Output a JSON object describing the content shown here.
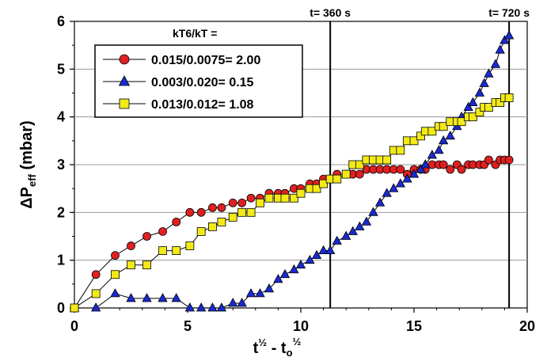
{
  "chart_data": {
    "type": "line",
    "xlim": [
      0,
      20
    ],
    "ylim": [
      0,
      6
    ],
    "grid": "horizontal",
    "xticks": [
      "0",
      "5",
      "10",
      "15",
      "20"
    ],
    "yticks": [
      "0",
      "1",
      "2",
      "3",
      "4",
      "5",
      "6"
    ],
    "xlabel": {
      "main": "t",
      "sup1": "½",
      "mid": " - t",
      "sub": "o",
      "sup2": "½"
    },
    "ylabel": {
      "main": "ΔP",
      "sub": "eff",
      "rest": " (mbar)"
    },
    "legend_title": "kT6/kT =",
    "legend_placement": "top-left",
    "annotations": [
      {
        "text": "t= 360 s",
        "x": 11.3
      },
      {
        "text": "t= 720 s",
        "x": 19.2
      }
    ],
    "vlines": [
      11.3,
      19.2
    ],
    "series": [
      {
        "name": "0.015/0.0075= 2.00",
        "marker": "circle",
        "color": "#e02020",
        "x": [
          0,
          0.95,
          1.8,
          2.5,
          3.2,
          3.9,
          4.5,
          5.1,
          5.6,
          6.1,
          6.5,
          7.0,
          7.4,
          7.8,
          8.2,
          8.6,
          9.0,
          9.3,
          9.7,
          10.0,
          10.4,
          10.7,
          11.0,
          11.3,
          11.6,
          12.0,
          12.3,
          12.6,
          12.9,
          13.2,
          13.5,
          13.8,
          14.1,
          14.4,
          14.7,
          15.0,
          15.3,
          15.5,
          15.8,
          16.1,
          16.3,
          16.6,
          16.9,
          17.1,
          17.4,
          17.6,
          17.9,
          18.1,
          18.3,
          18.6,
          18.8,
          19.0,
          19.2
        ],
        "y": [
          0,
          0.7,
          1.1,
          1.3,
          1.5,
          1.6,
          1.8,
          2.0,
          2.0,
          2.1,
          2.1,
          2.2,
          2.2,
          2.3,
          2.3,
          2.4,
          2.4,
          2.4,
          2.5,
          2.5,
          2.6,
          2.6,
          2.7,
          2.7,
          2.8,
          2.8,
          2.8,
          2.8,
          2.9,
          2.9,
          2.9,
          2.9,
          2.9,
          2.9,
          2.8,
          2.9,
          2.9,
          2.9,
          3.0,
          3.0,
          3.0,
          2.9,
          3.0,
          2.9,
          3.0,
          3.0,
          3.0,
          3.0,
          3.1,
          3.0,
          3.1,
          3.1,
          3.1
        ]
      },
      {
        "name": "0.003/0.020= 0.15",
        "marker": "triangle",
        "color": "#1a2ad0",
        "x": [
          0,
          0.95,
          1.8,
          2.5,
          3.2,
          3.9,
          4.5,
          5.1,
          5.6,
          6.1,
          6.5,
          7.0,
          7.4,
          7.8,
          8.2,
          8.6,
          9.0,
          9.3,
          9.7,
          10.0,
          10.4,
          10.7,
          11.0,
          11.3,
          11.6,
          12.0,
          12.3,
          12.6,
          12.9,
          13.2,
          13.5,
          13.8,
          14.1,
          14.4,
          14.7,
          15.0,
          15.3,
          15.5,
          15.8,
          16.1,
          16.3,
          16.6,
          16.9,
          17.1,
          17.4,
          17.6,
          17.9,
          18.1,
          18.3,
          18.6,
          18.8,
          19.0,
          19.2
        ],
        "y": [
          0,
          0,
          0.3,
          0.2,
          0.2,
          0.2,
          0.2,
          0,
          0,
          0,
          0,
          0.1,
          0.1,
          0.3,
          0.3,
          0.4,
          0.6,
          0.7,
          0.8,
          0.9,
          1.0,
          1.1,
          1.2,
          1.2,
          1.4,
          1.5,
          1.6,
          1.7,
          1.8,
          2.0,
          2.2,
          2.4,
          2.5,
          2.6,
          2.7,
          2.8,
          2.9,
          3.0,
          3.2,
          3.3,
          3.5,
          3.6,
          3.8,
          4.0,
          4.2,
          4.3,
          4.5,
          4.7,
          4.9,
          5.1,
          5.4,
          5.6,
          5.7
        ]
      },
      {
        "name": "0.013/0.012= 1.08",
        "marker": "square",
        "color": "#f2ea18",
        "x": [
          0,
          0.95,
          1.8,
          2.5,
          3.2,
          3.9,
          4.5,
          5.1,
          5.6,
          6.1,
          6.5,
          7.0,
          7.4,
          7.8,
          8.2,
          8.6,
          9.0,
          9.3,
          9.7,
          10.0,
          10.4,
          10.7,
          11.0,
          11.3,
          11.6,
          12.0,
          12.3,
          12.6,
          12.9,
          13.2,
          13.5,
          13.8,
          14.1,
          14.4,
          14.7,
          15.0,
          15.3,
          15.5,
          15.8,
          16.1,
          16.3,
          16.6,
          16.9,
          17.1,
          17.4,
          17.6,
          17.9,
          18.1,
          18.3,
          18.6,
          18.8,
          19.0,
          19.2
        ],
        "y": [
          0,
          0.3,
          0.7,
          0.9,
          0.9,
          1.2,
          1.2,
          1.3,
          1.6,
          1.7,
          1.8,
          1.9,
          2.0,
          2.0,
          2.2,
          2.3,
          2.3,
          2.3,
          2.3,
          2.4,
          2.5,
          2.5,
          2.6,
          2.7,
          2.7,
          2.8,
          3.0,
          3.0,
          3.1,
          3.1,
          3.1,
          3.1,
          3.3,
          3.3,
          3.5,
          3.5,
          3.6,
          3.7,
          3.7,
          3.8,
          3.8,
          3.9,
          3.9,
          3.9,
          4.0,
          4.0,
          4.1,
          4.2,
          4.2,
          4.3,
          4.3,
          4.4,
          4.4
        ]
      }
    ]
  }
}
